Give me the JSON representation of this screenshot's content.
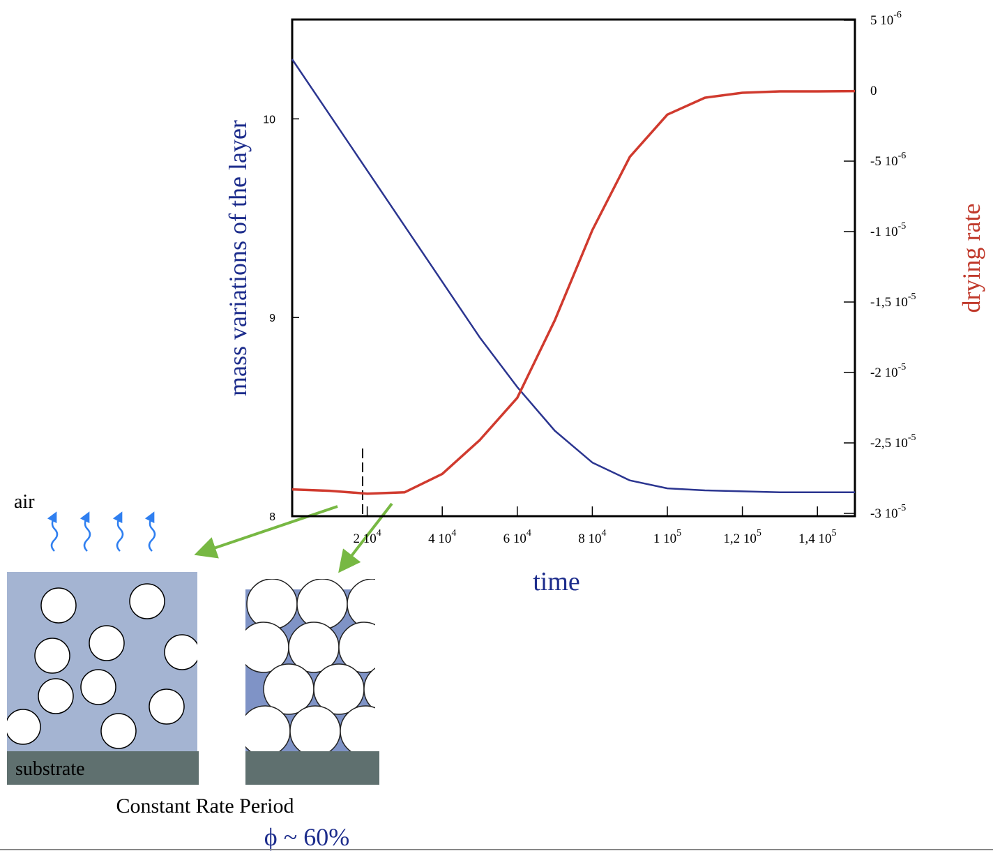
{
  "chart_data": {
    "type": "line",
    "xlabel": "time",
    "ylabel": "mass variations of the layer",
    "y2label": "drying rate",
    "x": [
      0,
      10000,
      20000,
      30000,
      40000,
      50000,
      60000,
      70000,
      80000,
      90000,
      100000,
      110000,
      120000,
      130000,
      140000,
      150000
    ],
    "xlim": [
      0,
      150000
    ],
    "xticks": [
      {
        "value": 20000,
        "label": "2 10",
        "sup": "4"
      },
      {
        "value": 40000,
        "label": "4 10",
        "sup": "4"
      },
      {
        "value": 60000,
        "label": "6 10",
        "sup": "4"
      },
      {
        "value": 80000,
        "label": "8 10",
        "sup": "4"
      },
      {
        "value": 100000,
        "label": "1 10",
        "sup": "5"
      },
      {
        "value": 120000,
        "label": "1,2 10",
        "sup": "5"
      },
      {
        "value": 140000,
        "label": "1,4 10",
        "sup": "5"
      }
    ],
    "ylim": [
      8,
      10.5
    ],
    "yticks": [
      8,
      9,
      10
    ],
    "y2lim": [
      -3.02e-05,
      5.05e-06
    ],
    "y2ticks": [
      {
        "value": 5e-06,
        "label": "5 10",
        "sup": "-6"
      },
      0,
      {
        "value": -5e-06,
        "label": "-5 10",
        "sup": "-6"
      },
      {
        "value": -1e-05,
        "label": "-1 10",
        "sup": "-5"
      },
      {
        "value": -1.5e-05,
        "label": "-1,5 10",
        "sup": "-5"
      },
      {
        "value": -2e-05,
        "label": "-2 10",
        "sup": "-5"
      },
      {
        "value": -2.5e-05,
        "label": "-2,5 10",
        "sup": "-5"
      },
      {
        "value": -3e-05,
        "label": "-3 10",
        "sup": "-5"
      }
    ],
    "series": [
      {
        "color": "#2b3590",
        "values": [
          10.3,
          10.02,
          9.74,
          9.46,
          9.18,
          8.9,
          8.65,
          8.43,
          8.27,
          8.18,
          8.14,
          8.13,
          8.125,
          8.12,
          8.12,
          8.12
        ]
      },
      {
        "color": "#d03a2e",
        "axis": "y2",
        "values": [
          -2.83e-05,
          -2.84e-05,
          -2.86e-05,
          -2.85e-05,
          -2.72e-05,
          -2.48e-05,
          -2.18e-05,
          -1.63e-05,
          -9.9e-06,
          -4.7e-06,
          -1.7e-06,
          -5e-07,
          -1.5e-07,
          -5e-08,
          -5e-08,
          -3e-08
        ]
      }
    ]
  },
  "diagram": {
    "air": "air",
    "substrate": "substrate",
    "caption": "Constant Rate Period",
    "fraction": "ϕ ~ 60%"
  }
}
